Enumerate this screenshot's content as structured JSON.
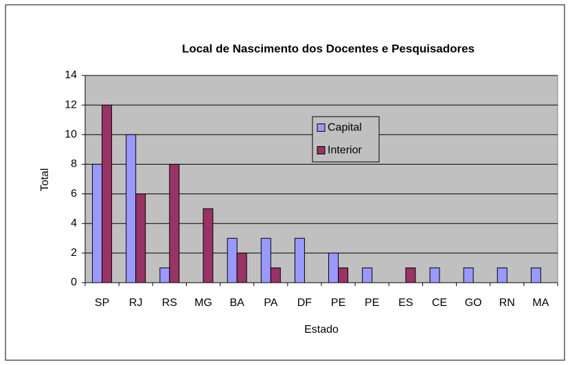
{
  "chart_data": {
    "type": "bar",
    "title": "Local de Nascimento dos Docentes e Pesquisadores",
    "x_label": "Estado",
    "y_label": "Total",
    "categories": [
      "SP",
      "RJ",
      "RS",
      "MG",
      "BA",
      "PA",
      "DF",
      "PE",
      "PE",
      "ES",
      "CE",
      "GO",
      "RN",
      "MA"
    ],
    "series": [
      {
        "name": "Capital",
        "color": "#9999ff",
        "values": [
          8,
          10,
          1,
          0,
          3,
          3,
          3,
          2,
          1,
          0,
          1,
          1,
          1,
          1
        ]
      },
      {
        "name": "Interior",
        "color": "#993366",
        "values": [
          12,
          6,
          8,
          5,
          2,
          1,
          0,
          1,
          0,
          1,
          0,
          0,
          0,
          0
        ]
      }
    ],
    "ylim": [
      0,
      14
    ],
    "yticks": [
      0,
      2,
      4,
      6,
      8,
      10,
      12,
      14
    ],
    "grid": true,
    "legend": "inside-center"
  }
}
